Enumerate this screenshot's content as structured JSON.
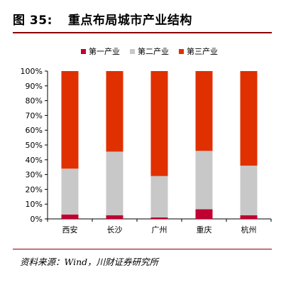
{
  "figure": {
    "number": "图 35:",
    "title": "重点布局城市产业结构",
    "source": "资料来源：Wind，川财证券研究所"
  },
  "colors": {
    "primary": "#c00030",
    "secondary": "#c8c8c8",
    "tertiary": "#e03000",
    "rule": "#8b0000"
  },
  "chart_data": {
    "type": "bar",
    "stacked": true,
    "categories": [
      "西安",
      "长沙",
      "广州",
      "重庆",
      "杭州"
    ],
    "series": [
      {
        "name": "第一产业",
        "color": "#c00030",
        "values": [
          3,
          2.5,
          1,
          6.5,
          2.5
        ]
      },
      {
        "name": "第二产业",
        "color": "#c8c8c8",
        "values": [
          31,
          43,
          28,
          39.5,
          33.5
        ]
      },
      {
        "name": "第三产业",
        "color": "#e03000",
        "values": [
          66,
          54.5,
          71,
          54,
          64
        ]
      }
    ],
    "yticks": [
      "0%",
      "10%",
      "20%",
      "30%",
      "40%",
      "50%",
      "60%",
      "70%",
      "80%",
      "90%",
      "100%"
    ],
    "ylim": [
      0,
      100
    ],
    "legend_position": "top-center",
    "grid": false
  }
}
